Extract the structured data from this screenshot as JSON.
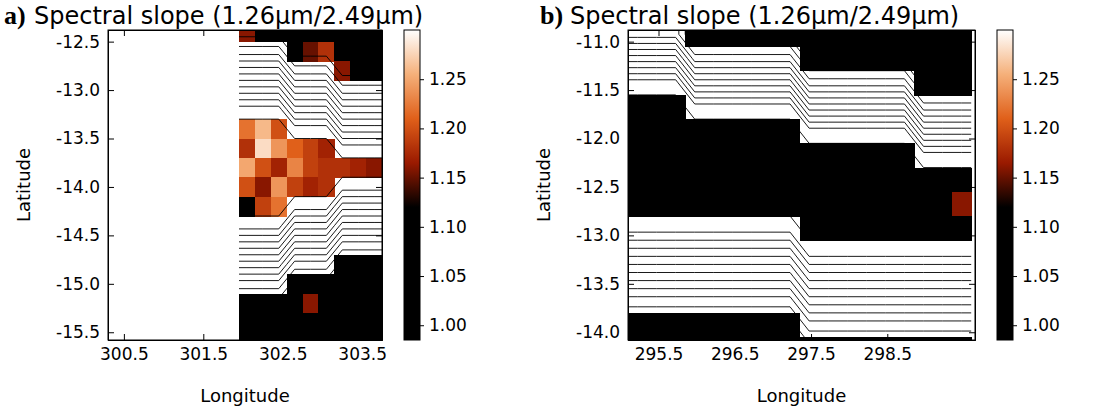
{
  "chart_data": [
    {
      "type": "heatmap",
      "label": "a)",
      "title": "Spectral slope (1.26μm/2.49μm)",
      "x_label": "Longitude",
      "y_label": "Latitude",
      "xlim": [
        300.3,
        303.75
      ],
      "xticks": [
        300.5,
        301.5,
        302.5,
        303.5
      ],
      "ylim": [
        -15.58,
        -12.38
      ],
      "yticks": [
        -15.5,
        {
          "value": -15,
          "label": "-15.0"
        },
        -14.5,
        {
          "value": -14,
          "label": "-14.0"
        },
        -13.5,
        {
          "value": -13,
          "label": "-13.0"
        },
        -12.5
      ],
      "x": [
        302.05,
        302.25,
        302.45,
        302.65,
        302.85,
        303.05,
        303.25,
        303.45,
        303.65
      ],
      "y": [
        -12.4,
        -12.6,
        -12.8,
        -13.0,
        -13.2,
        -13.4,
        -13.6,
        -13.8,
        -14.0,
        -14.2,
        -14.4,
        -14.6,
        -14.8,
        -15.0,
        -15.2,
        -15.4,
        -15.6
      ],
      "z": [
        [
          1.16,
          1.12,
          1.08,
          1.06,
          1.05,
          1.06,
          1.05,
          1.04,
          1.05
        ],
        [
          null,
          null,
          null,
          1.1,
          1.15,
          1.18,
          1.06,
          1.05,
          1.04
        ],
        [
          null,
          null,
          null,
          null,
          null,
          null,
          1.16,
          1.08,
          1.05
        ],
        [
          null,
          null,
          null,
          null,
          null,
          null,
          null,
          null,
          null
        ],
        [
          null,
          null,
          null,
          null,
          null,
          null,
          null,
          null,
          null
        ],
        [
          1.22,
          1.26,
          1.2,
          null,
          null,
          null,
          null,
          null,
          null
        ],
        [
          1.18,
          1.28,
          1.24,
          1.21,
          1.19,
          1.17,
          null,
          null,
          null
        ],
        [
          1.25,
          1.2,
          1.17,
          1.23,
          1.19,
          1.18,
          1.18,
          1.17,
          1.16
        ],
        [
          1.2,
          1.16,
          1.24,
          1.19,
          1.17,
          1.18,
          null,
          null,
          null
        ],
        [
          1.06,
          1.19,
          1.22,
          null,
          null,
          null,
          null,
          null,
          null
        ],
        [
          null,
          null,
          null,
          null,
          null,
          null,
          null,
          null,
          null
        ],
        [
          null,
          null,
          null,
          null,
          null,
          null,
          null,
          null,
          null
        ],
        [
          null,
          null,
          null,
          null,
          null,
          null,
          1.05,
          1.04,
          1.06
        ],
        [
          null,
          null,
          null,
          1.04,
          1.05,
          1.03,
          1.04,
          1.05,
          1.04
        ],
        [
          1.05,
          1.04,
          1.06,
          1.05,
          1.16,
          1.04,
          1.03,
          1.05,
          1.04
        ],
        [
          1.04,
          1.05,
          1.03,
          1.04,
          1.05,
          1.06,
          1.04,
          1.05,
          1.03
        ],
        [
          1.05,
          1.04,
          1.05,
          1.03,
          1.04,
          1.05,
          1.06,
          1.04,
          1.05
        ]
      ],
      "elevation": [
        [
          12,
          12,
          12,
          12,
          12,
          12,
          12,
          12,
          12
        ],
        [
          10,
          10,
          10,
          12,
          12,
          12,
          12,
          12,
          12
        ],
        [
          7,
          7,
          7,
          10,
          10,
          10,
          12,
          12,
          12
        ],
        [
          4,
          4,
          4,
          7,
          7,
          7,
          10,
          10,
          10
        ],
        [
          1,
          1,
          1,
          4,
          4,
          4,
          7,
          7,
          7
        ],
        [
          0,
          0,
          0,
          1,
          1,
          1,
          4,
          4,
          4
        ],
        [
          0,
          0,
          0,
          0,
          0,
          0,
          1,
          1,
          1
        ],
        [
          0,
          0,
          0,
          0,
          0,
          0,
          0,
          0,
          0
        ],
        [
          0,
          0,
          0,
          0,
          0,
          0,
          1,
          1,
          1
        ],
        [
          0,
          0,
          0,
          1,
          1,
          1,
          4,
          4,
          4
        ],
        [
          1,
          1,
          1,
          4,
          4,
          4,
          7,
          7,
          7
        ],
        [
          4,
          4,
          4,
          7,
          7,
          7,
          10,
          10,
          10
        ],
        [
          7,
          7,
          7,
          10,
          10,
          10,
          12,
          12,
          12
        ],
        [
          10,
          10,
          10,
          12,
          12,
          12,
          12,
          12,
          12
        ],
        [
          12,
          12,
          12,
          12,
          12,
          12,
          12,
          12,
          12
        ],
        [
          12,
          12,
          12,
          12,
          12,
          12,
          12,
          12,
          12
        ],
        [
          12,
          12,
          12,
          12,
          12,
          12,
          12,
          12,
          12
        ]
      ],
      "contour_levels": [
        0.5,
        1.5,
        2.5,
        3.5,
        4.5,
        5.5,
        6.5,
        7.5,
        8.5,
        9.5,
        10.5,
        11.5
      ],
      "colorbar": {
        "range": [
          0.985,
          1.3
        ],
        "ticks": [
          {
            "value": 1,
            "label": "1.00"
          },
          1.05,
          {
            "value": 1.1,
            "label": "1.10"
          },
          1.15,
          {
            "value": 1.2,
            "label": "1.20"
          },
          1.25
        ],
        "colors": [
          "#000000",
          "#000000",
          "#000000",
          "#000000",
          "#9a1a00",
          "#e0601a",
          "#f5b07a",
          "#ffffff"
        ]
      }
    },
    {
      "type": "heatmap",
      "label": "b)",
      "title": "Spectral slope (1.26μm/2.49μm)",
      "x_label": "Longitude",
      "y_label": "Latitude",
      "xlim": [
        295.1,
        299.65
      ],
      "xticks": [
        295.5,
        296.5,
        297.5,
        298.5
      ],
      "ylim": [
        -14.08,
        -10.88
      ],
      "yticks": [
        {
          "value": -14,
          "label": "-14.0"
        },
        -13.5,
        {
          "value": -13,
          "label": "-13.0"
        },
        -12.5,
        {
          "value": -12,
          "label": "-12.0"
        },
        -11.5,
        {
          "value": -11,
          "label": "-11.0"
        }
      ],
      "x": [
        295.225,
        295.475,
        295.725,
        295.975,
        296.225,
        296.475,
        296.725,
        296.975,
        297.225,
        297.475,
        297.725,
        297.975,
        298.225,
        298.475,
        298.725,
        298.975,
        299.225,
        299.475
      ],
      "y": [
        -10.925,
        -11.175,
        -11.425,
        -11.675,
        -11.925,
        -12.175,
        -12.425,
        -12.675,
        -12.925,
        -13.175,
        -13.425,
        -13.675,
        -13.925,
        -14.175
      ],
      "z": [
        [
          null,
          null,
          null,
          1.05,
          1.04,
          1.06,
          1.05,
          1.03,
          1.04,
          1.05,
          1.06,
          1.04,
          1.05,
          1.03,
          1.04,
          1.05,
          1.06,
          1.04
        ],
        [
          null,
          null,
          null,
          null,
          null,
          null,
          null,
          null,
          null,
          1.04,
          1.05,
          1.03,
          1.06,
          1.05,
          1.04,
          1.05,
          1.03,
          1.06
        ],
        [
          null,
          null,
          null,
          null,
          null,
          null,
          null,
          null,
          null,
          null,
          null,
          null,
          null,
          null,
          null,
          1.04,
          1.05,
          1.03
        ],
        [
          1.05,
          1.04,
          1.06,
          null,
          null,
          null,
          null,
          null,
          null,
          null,
          null,
          null,
          null,
          null,
          null,
          null,
          null,
          null
        ],
        [
          1.04,
          1.05,
          1.03,
          1.06,
          1.04,
          1.05,
          1.03,
          1.05,
          1.04,
          null,
          null,
          null,
          null,
          null,
          null,
          null,
          null,
          null
        ],
        [
          1.03,
          1.05,
          1.04,
          1.05,
          1.06,
          1.04,
          1.05,
          1.03,
          1.04,
          1.05,
          1.04,
          1.06,
          1.03,
          1.05,
          1.04,
          null,
          null,
          null
        ],
        [
          1.05,
          1.04,
          1.06,
          1.03,
          1.05,
          1.04,
          1.04,
          1.05,
          1.03,
          1.06,
          1.04,
          1.05,
          1.04,
          1.03,
          1.05,
          1.04,
          1.06,
          1.05
        ],
        [
          1.04,
          1.06,
          1.05,
          1.04,
          1.03,
          1.05,
          1.06,
          1.04,
          1.05,
          1.04,
          1.03,
          1.05,
          1.06,
          1.04,
          1.05,
          1.03,
          1.04,
          1.16
        ],
        [
          null,
          null,
          null,
          null,
          null,
          null,
          null,
          null,
          null,
          1.05,
          1.04,
          1.06,
          1.05,
          1.03,
          1.04,
          1.05,
          1.06,
          1.04
        ],
        [
          null,
          null,
          null,
          null,
          null,
          null,
          null,
          null,
          null,
          null,
          null,
          null,
          null,
          null,
          null,
          null,
          null,
          null
        ],
        [
          null,
          null,
          null,
          null,
          null,
          null,
          null,
          null,
          null,
          null,
          null,
          null,
          null,
          null,
          null,
          null,
          null,
          null
        ],
        [
          null,
          null,
          null,
          null,
          null,
          null,
          null,
          null,
          null,
          null,
          null,
          null,
          null,
          null,
          null,
          null,
          null,
          null
        ],
        [
          1.04,
          1.05,
          1.03,
          1.06,
          1.04,
          1.05,
          1.04,
          1.03,
          1.05,
          null,
          null,
          null,
          null,
          null,
          null,
          null,
          null,
          null
        ],
        [
          1.05,
          1.04,
          1.06,
          1.05,
          1.03,
          1.04,
          1.05,
          1.06,
          1.04,
          1.05,
          1.03,
          1.04,
          1.06,
          1.05,
          1.04,
          1.03,
          1.05,
          1.04
        ]
      ],
      "elevation": [
        [
          9,
          9,
          9,
          12,
          12,
          12,
          12,
          12,
          12,
          12,
          12,
          12,
          12,
          12,
          12,
          12,
          12,
          12
        ],
        [
          5,
          5,
          5,
          9,
          9,
          9,
          9,
          9,
          9,
          12,
          12,
          12,
          12,
          12,
          12,
          12,
          12,
          12
        ],
        [
          1,
          1,
          1,
          5,
          5,
          5,
          5,
          5,
          5,
          9,
          9,
          9,
          9,
          9,
          9,
          12,
          12,
          12
        ],
        [
          0,
          0,
          0,
          1,
          1,
          1,
          1,
          1,
          1,
          5,
          5,
          5,
          5,
          5,
          5,
          9,
          9,
          9
        ],
        [
          0,
          0,
          0,
          0,
          0,
          0,
          0,
          0,
          0,
          1,
          1,
          1,
          1,
          1,
          1,
          5,
          5,
          5
        ],
        [
          0,
          0,
          0,
          0,
          0,
          0,
          0,
          0,
          0,
          0,
          0,
          0,
          0,
          0,
          0,
          1,
          1,
          1
        ],
        [
          0,
          0,
          0,
          0,
          0,
          0,
          0,
          0,
          0,
          0,
          0,
          0,
          0,
          0,
          0,
          0,
          0,
          0
        ],
        [
          0,
          0,
          0,
          0,
          0,
          0,
          0,
          0,
          0,
          0,
          0,
          0,
          0,
          0,
          0,
          0,
          0,
          0
        ],
        [
          1,
          1,
          1,
          1,
          1,
          1,
          1,
          1,
          1,
          0,
          0,
          0,
          0,
          0,
          0,
          0,
          0,
          0
        ],
        [
          4,
          4,
          4,
          4,
          4,
          4,
          4,
          4,
          4,
          1,
          1,
          1,
          1,
          1,
          1,
          1,
          1,
          1
        ],
        [
          7,
          7,
          7,
          7,
          7,
          7,
          7,
          7,
          7,
          4,
          4,
          4,
          4,
          4,
          4,
          4,
          4,
          4
        ],
        [
          10,
          10,
          10,
          10,
          10,
          10,
          10,
          10,
          10,
          7,
          7,
          7,
          7,
          7,
          7,
          7,
          7,
          7
        ],
        [
          12,
          12,
          12,
          12,
          12,
          12,
          12,
          12,
          12,
          10,
          10,
          10,
          10,
          10,
          10,
          10,
          10,
          10
        ],
        [
          12,
          12,
          12,
          12,
          12,
          12,
          12,
          12,
          12,
          12,
          12,
          12,
          12,
          12,
          12,
          12,
          12,
          12
        ]
      ],
      "contour_levels": [
        0.5,
        1.5,
        2.5,
        3.5,
        4.5,
        5.5,
        6.5,
        7.5,
        8.5,
        9.5,
        10.5,
        11.5
      ],
      "colorbar": {
        "range": [
          0.985,
          1.3
        ],
        "ticks": [
          {
            "value": 1,
            "label": "1.00"
          },
          1.05,
          {
            "value": 1.1,
            "label": "1.10"
          },
          1.15,
          {
            "value": 1.2,
            "label": "1.20"
          },
          1.25
        ],
        "colors": [
          "#000000",
          "#000000",
          "#000000",
          "#000000",
          "#9a1a00",
          "#e0601a",
          "#f5b07a",
          "#ffffff"
        ]
      }
    }
  ]
}
